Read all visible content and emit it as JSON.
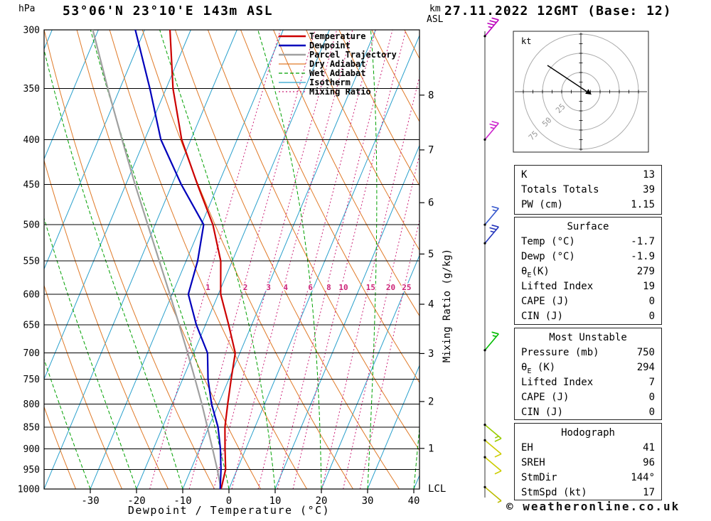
{
  "header": {
    "station": "53°06'N 23°10'E 143m ASL",
    "datetime": "27.11.2022 12GMT (Base: 12)"
  },
  "copyright": "© weatheronline.co.uk",
  "axes": {
    "pressure_unit": "hPa",
    "altitude_unit_line1": "km",
    "altitude_unit_line2": "ASL",
    "xlabel": "Dewpoint / Temperature (°C)",
    "right_label": "Mixing Ratio (g/kg)",
    "lcl_label": "LCL"
  },
  "chart_data": {
    "type": "skewt-log-p",
    "pressure_ticks_hPa": [
      300,
      350,
      400,
      450,
      500,
      550,
      600,
      650,
      700,
      750,
      800,
      850,
      900,
      950,
      1000
    ],
    "temp_ticks_C": [
      -30,
      -20,
      -10,
      0,
      10,
      20,
      30,
      40
    ],
    "km_ticks": [
      1,
      2,
      3,
      4,
      5,
      6,
      7,
      8
    ],
    "km_tick_pressures_hPa": {
      "1": 899,
      "2": 795,
      "3": 701,
      "4": 616,
      "5": 540,
      "6": 472,
      "7": 411,
      "8": 356
    },
    "mixing_ratio_lines_gkg": [
      1,
      2,
      3,
      4,
      6,
      8,
      10,
      15,
      20,
      25
    ],
    "isotherm_range_C": [
      -90,
      40,
      10
    ],
    "dry_adiabat_range_K": [
      200,
      400,
      10
    ],
    "wet_adiabat_surface_temps_C": [
      -60,
      40,
      10
    ],
    "temperature_profile": [
      [
        1000,
        -1.7
      ],
      [
        950,
        -2.5
      ],
      [
        900,
        -4.5
      ],
      [
        850,
        -6.5
      ],
      [
        800,
        -8.0
      ],
      [
        750,
        -9.5
      ],
      [
        700,
        -11.0
      ],
      [
        650,
        -15.0
      ],
      [
        600,
        -19.5
      ],
      [
        550,
        -22.5
      ],
      [
        500,
        -27.5
      ],
      [
        450,
        -34.5
      ],
      [
        400,
        -42.0
      ],
      [
        350,
        -48.5
      ],
      [
        300,
        -54.5
      ]
    ],
    "dewpoint_profile": [
      [
        1000,
        -1.9
      ],
      [
        950,
        -3.5
      ],
      [
        900,
        -5.5
      ],
      [
        850,
        -8.0
      ],
      [
        800,
        -11.5
      ],
      [
        750,
        -14.5
      ],
      [
        700,
        -17.0
      ],
      [
        650,
        -22.0
      ],
      [
        600,
        -26.5
      ],
      [
        550,
        -27.5
      ],
      [
        500,
        -29.5
      ],
      [
        450,
        -38.0
      ],
      [
        400,
        -46.5
      ],
      [
        350,
        -53.5
      ],
      [
        300,
        -62.0
      ]
    ],
    "parcel_profile": [
      [
        1000,
        -1.7
      ],
      [
        950,
        -4.3
      ],
      [
        900,
        -7.2
      ],
      [
        850,
        -10.3
      ],
      [
        800,
        -13.6
      ],
      [
        750,
        -17.3
      ],
      [
        700,
        -21.3
      ],
      [
        650,
        -25.7
      ],
      [
        600,
        -30.5
      ],
      [
        550,
        -35.8
      ],
      [
        500,
        -41.6
      ],
      [
        450,
        -48.0
      ],
      [
        400,
        -54.9
      ],
      [
        350,
        -62.6
      ],
      [
        300,
        -71.2
      ]
    ],
    "legend": [
      {
        "label": "Temperature",
        "color": "#cc0000",
        "width": 2.5,
        "dash": ""
      },
      {
        "label": "Dewpoint",
        "color": "#0000bb",
        "width": 2.5,
        "dash": ""
      },
      {
        "label": "Parcel Trajectory",
        "color": "#a0a0a0",
        "width": 2.5,
        "dash": ""
      },
      {
        "label": "Dry Adiabat",
        "color": "#e07a28",
        "width": 1.2,
        "dash": ""
      },
      {
        "label": "Wet Adiabat",
        "color": "#00a000",
        "width": 1.2,
        "dash": "5,3"
      },
      {
        "label": "Isotherm",
        "color": "#29a0cc",
        "width": 1.2,
        "dash": ""
      },
      {
        "label": "Mixing Ratio",
        "color": "#cc2277",
        "width": 1.2,
        "dash": "2,3"
      }
    ],
    "colors": {
      "temperature": "#cc0000",
      "dewpoint": "#0000bb",
      "parcel": "#a0a0a0",
      "dry_adiabat": "#e07a28",
      "wet_adiabat": "#00a000",
      "isotherm": "#29a0cc",
      "mixing_ratio": "#cc2277",
      "grid": "#000000"
    }
  },
  "wind_barbs": [
    {
      "pressure_hPa": 305,
      "color": "#bb00bb",
      "speed_kt": 35,
      "up": true
    },
    {
      "pressure_hPa": 400,
      "color": "#cc22cc",
      "speed_kt": 25,
      "up": true
    },
    {
      "pressure_hPa": 500,
      "color": "#3355cc",
      "speed_kt": 15,
      "up": true
    },
    {
      "pressure_hPa": 525,
      "color": "#2233bb",
      "speed_kt": 25,
      "up": true
    },
    {
      "pressure_hPa": 695,
      "color": "#00bb00",
      "speed_kt": 15,
      "up": true
    },
    {
      "pressure_hPa": 845,
      "color": "#99cc00",
      "speed_kt": 15,
      "up": false
    },
    {
      "pressure_hPa": 880,
      "color": "#cccc00",
      "speed_kt": 10,
      "up": false
    },
    {
      "pressure_hPa": 920,
      "color": "#cccc00",
      "speed_kt": 10,
      "up": false
    },
    {
      "pressure_hPa": 995,
      "color": "#bbbb00",
      "speed_kt": 5,
      "up": false
    }
  ],
  "hodograph": {
    "unit_label": "kt",
    "ring_labels": [
      "25",
      "50",
      "75"
    ],
    "ring_radii_kt": [
      25,
      50,
      75
    ]
  },
  "tables": [
    {
      "rows": [
        [
          "K",
          "13"
        ],
        [
          "Totals Totals",
          "39"
        ],
        [
          "PW (cm)",
          "1.15"
        ]
      ]
    },
    {
      "title": "Surface",
      "rows": [
        [
          "Temp (°C)",
          "-1.7"
        ],
        [
          "Dewp (°C)",
          "-1.9"
        ],
        [
          "θE(K)",
          "279"
        ],
        [
          "Lifted Index",
          "19"
        ],
        [
          "CAPE (J)",
          "0"
        ],
        [
          "CIN (J)",
          "0"
        ]
      ]
    },
    {
      "title": "Most Unstable",
      "rows": [
        [
          "Pressure (mb)",
          "750"
        ],
        [
          "θE (K)",
          "294"
        ],
        [
          "Lifted Index",
          "7"
        ],
        [
          "CAPE (J)",
          "0"
        ],
        [
          "CIN (J)",
          "0"
        ]
      ]
    },
    {
      "title": "Hodograph",
      "rows": [
        [
          "EH",
          "41"
        ],
        [
          "SREH",
          "96"
        ],
        [
          "StmDir",
          "144°"
        ],
        [
          "StmSpd (kt)",
          "17"
        ]
      ]
    }
  ]
}
